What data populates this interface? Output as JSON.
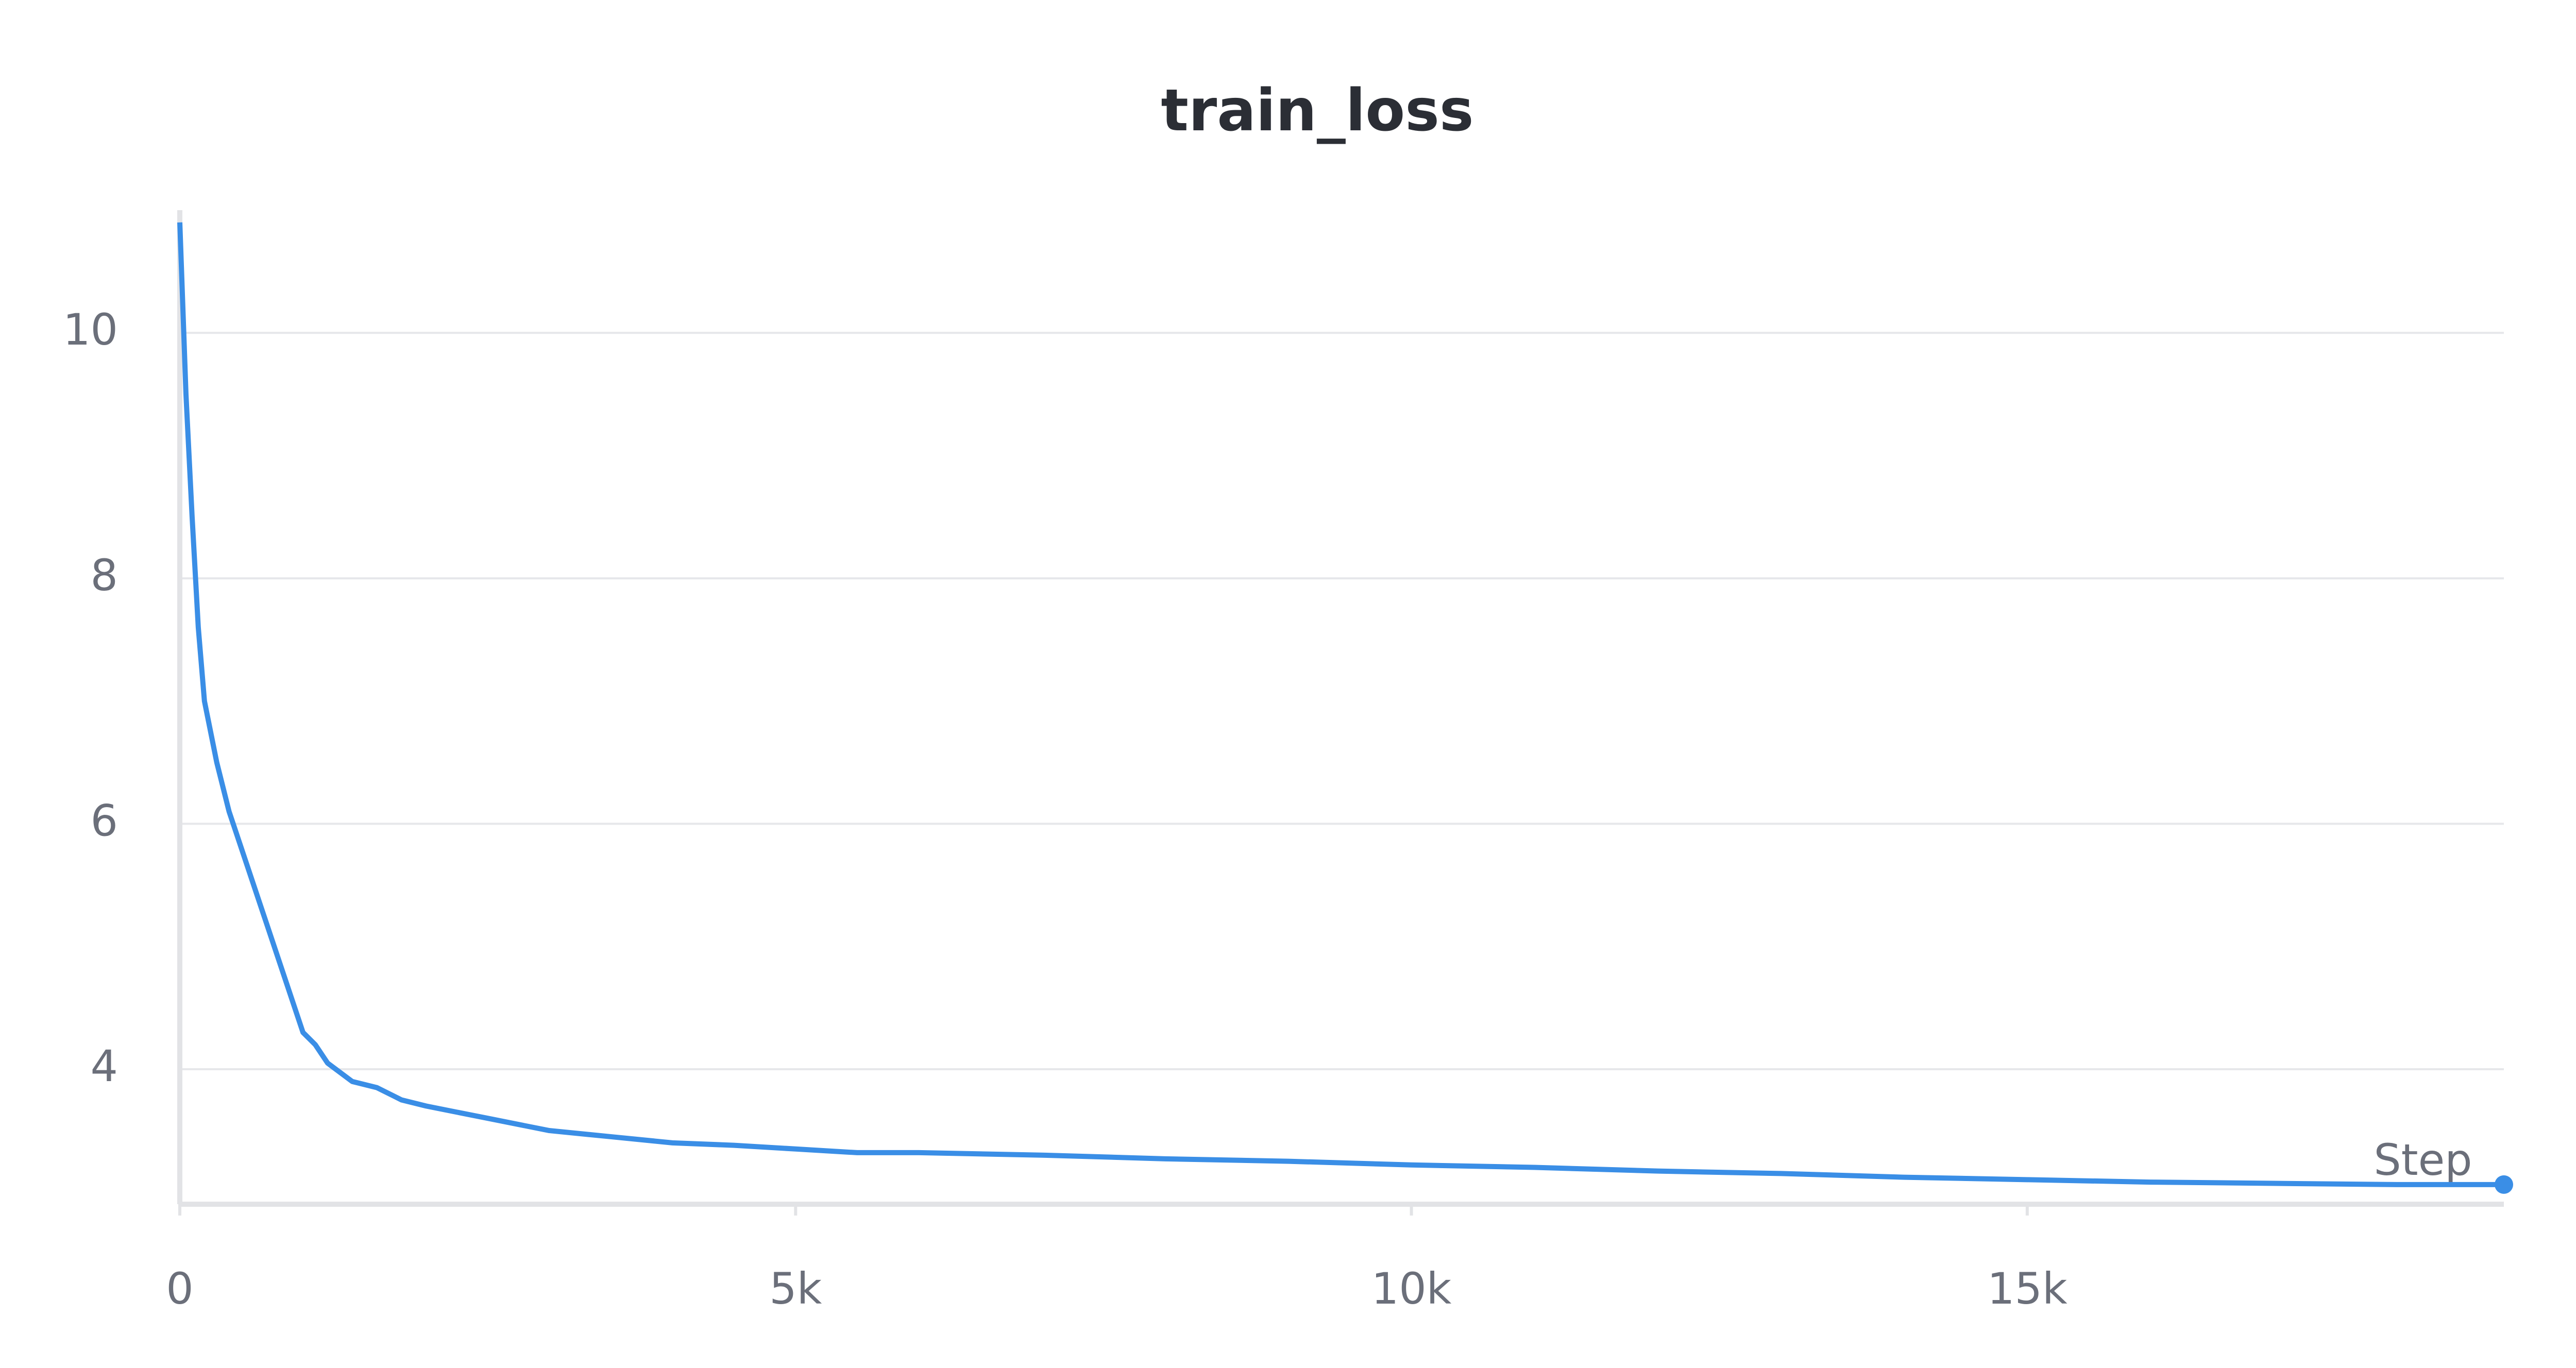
{
  "chart_data": {
    "type": "line",
    "title": "train_loss",
    "x_label": "Step",
    "x": [
      0,
      50,
      100,
      150,
      200,
      300,
      400,
      500,
      600,
      700,
      800,
      900,
      1000,
      1100,
      1200,
      1400,
      1600,
      1800,
      2000,
      2500,
      3000,
      3500,
      4000,
      4500,
      5000,
      5500,
      6000,
      7000,
      8000,
      9000,
      10000,
      11000,
      12000,
      13000,
      14000,
      15000,
      16000,
      17000,
      18000,
      18870
    ],
    "series": [
      {
        "name": "train_loss",
        "color": "#3a8ee6",
        "values": [
          10.9,
          9.5,
          8.5,
          7.6,
          7.0,
          6.5,
          6.1,
          5.8,
          5.5,
          5.2,
          4.9,
          4.6,
          4.3,
          4.2,
          4.05,
          3.9,
          3.85,
          3.75,
          3.7,
          3.6,
          3.5,
          3.45,
          3.4,
          3.38,
          3.35,
          3.32,
          3.32,
          3.3,
          3.27,
          3.25,
          3.22,
          3.2,
          3.17,
          3.15,
          3.12,
          3.1,
          3.08,
          3.07,
          3.06,
          3.06
        ]
      }
    ],
    "xlim": [
      0,
      18870
    ],
    "ylim": [
      2.9,
      11
    ],
    "xticks": [
      0,
      {
        "value": 5000,
        "label": "5k"
      },
      {
        "value": 10000,
        "label": "10k"
      },
      {
        "value": 15000,
        "label": "15k"
      }
    ],
    "yticks": [
      4,
      6,
      8,
      10
    ],
    "grid": true
  }
}
